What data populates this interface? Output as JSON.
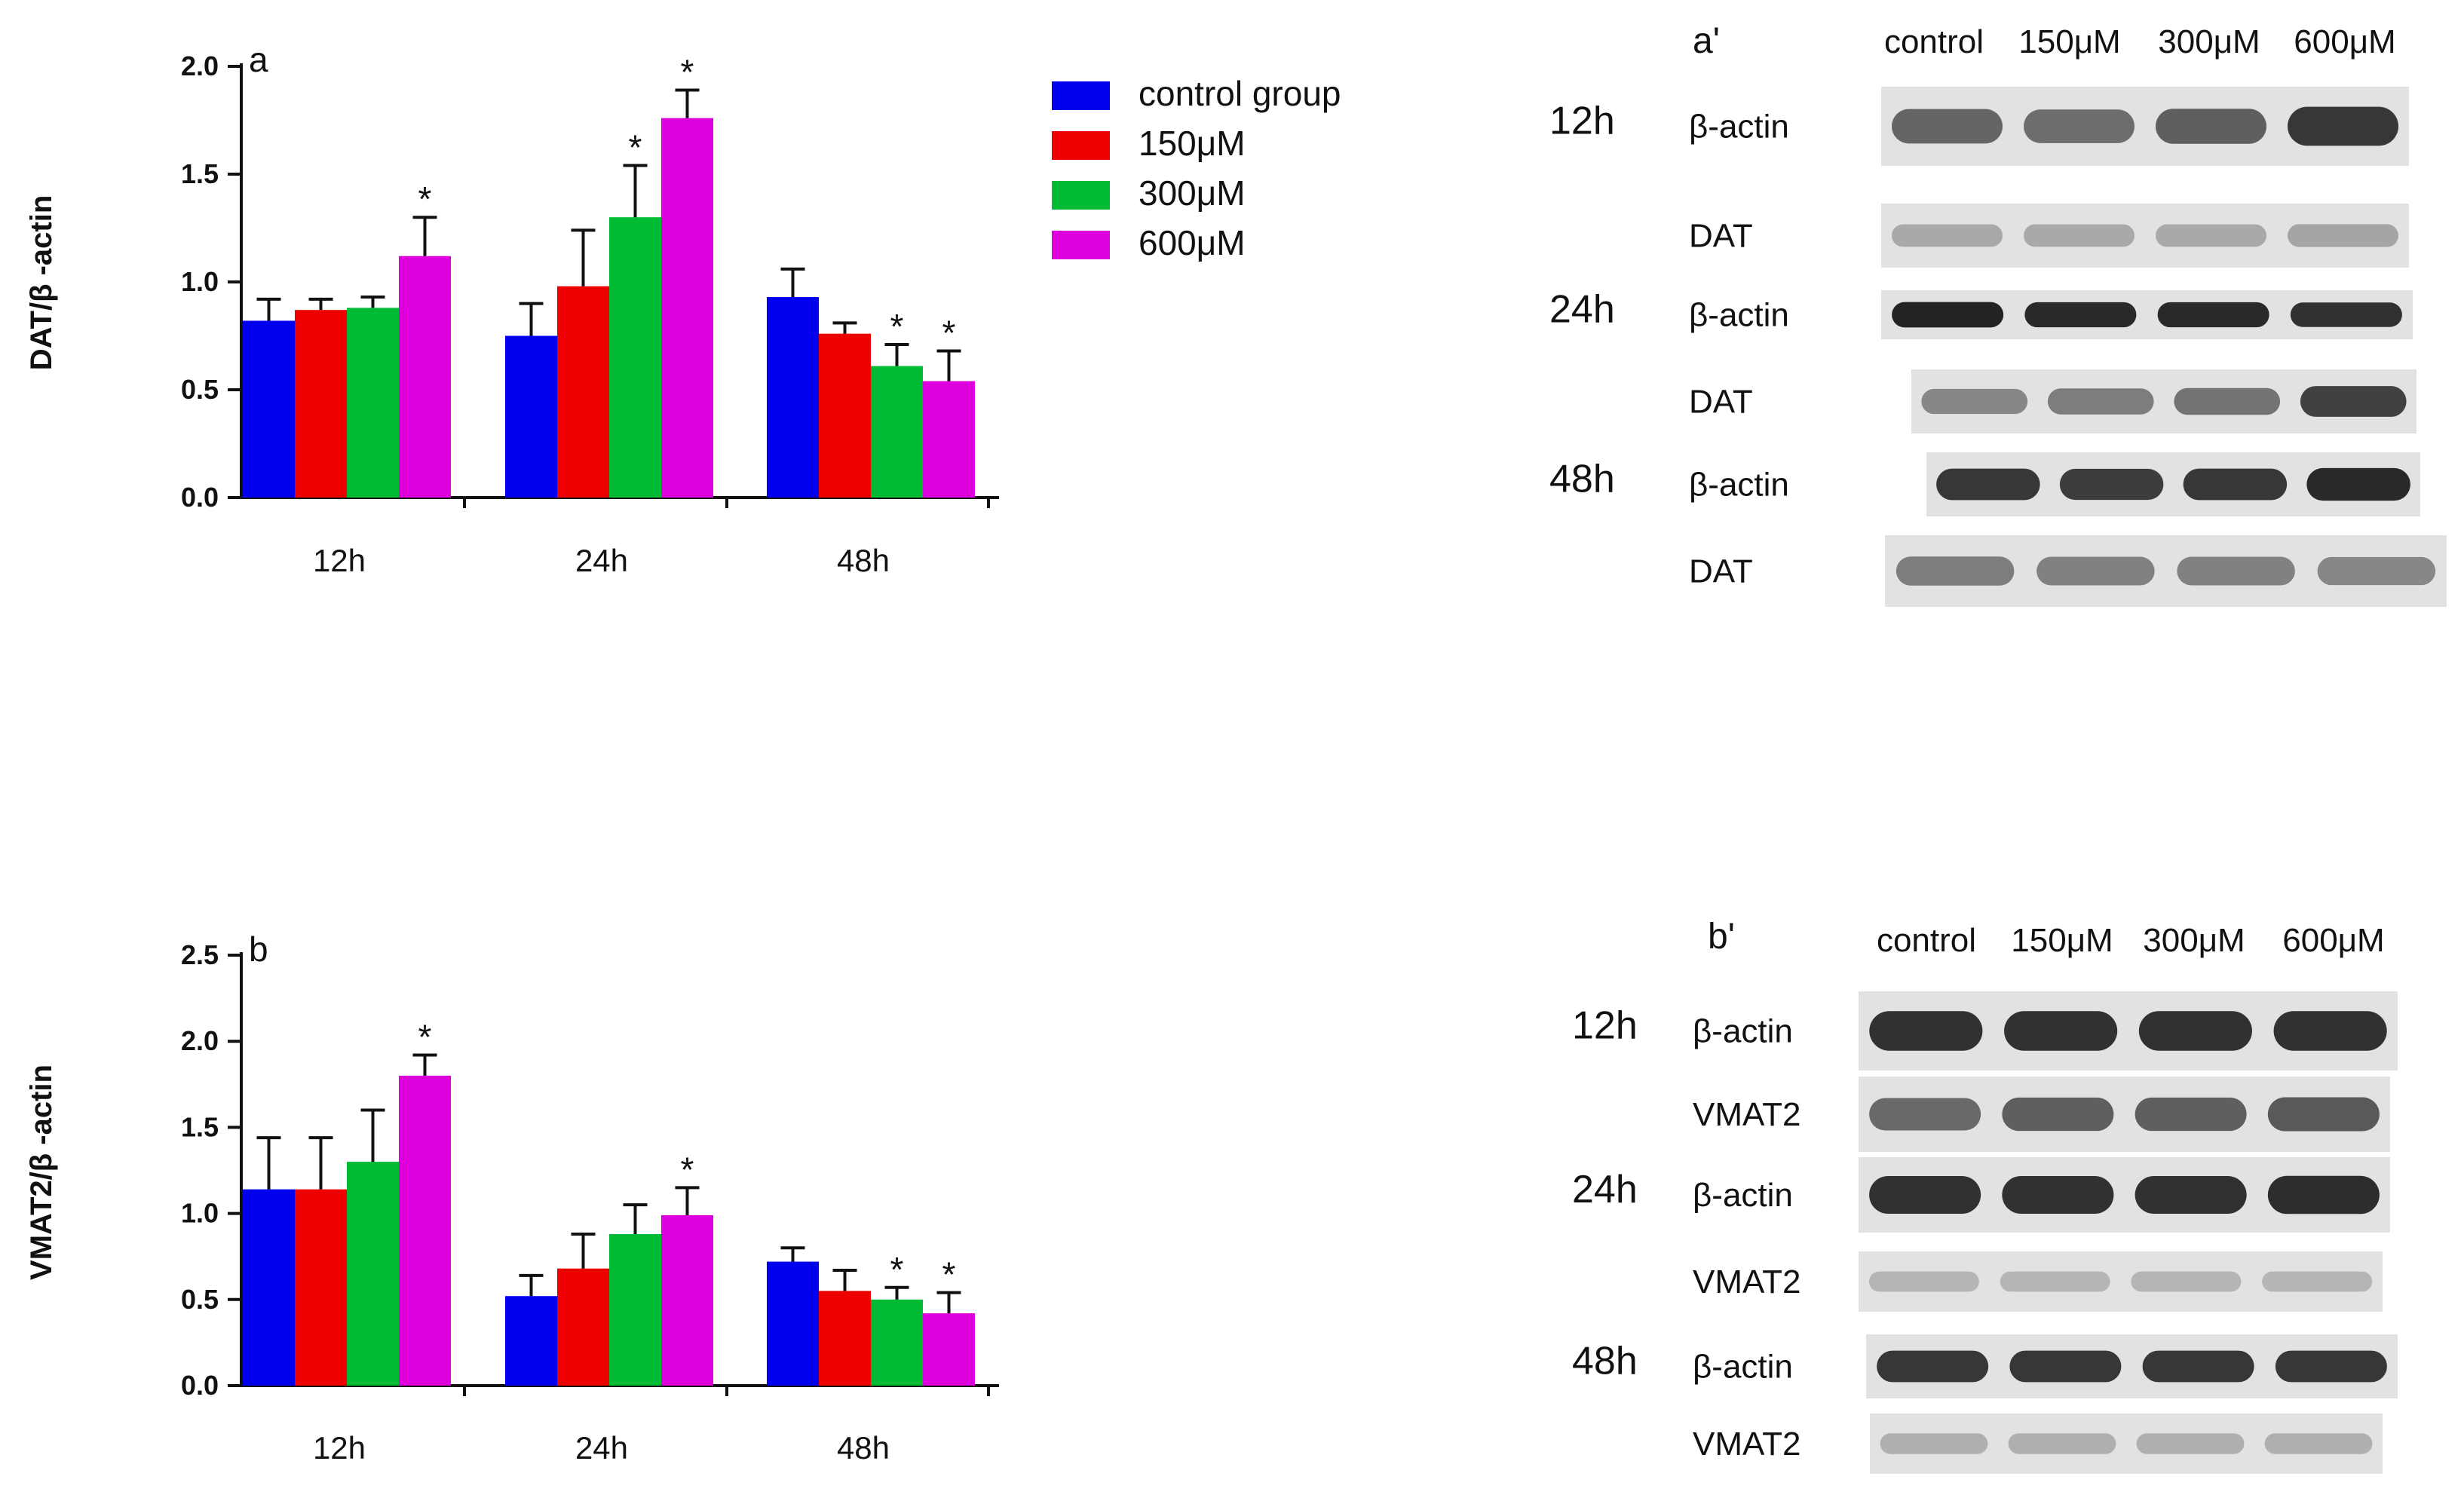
{
  "colors": {
    "control": "#0000ee",
    "c150": "#ee0000",
    "c300": "#00bb33",
    "c600": "#dd00dd",
    "axis": "#111111",
    "text": "#111111"
  },
  "legend": {
    "items": [
      {
        "label": "control group",
        "color": "#0000ee"
      },
      {
        "label": "150μM",
        "color": "#ee0000"
      },
      {
        "label": "300μM",
        "color": "#00bb33"
      },
      {
        "label": "600μM",
        "color": "#dd00dd"
      }
    ],
    "position": "top-right of chart a"
  },
  "chart_data": [
    {
      "type": "bar",
      "panel": "a",
      "title": "",
      "xlabel": "",
      "ylabel": "DAT/β -actin",
      "ylim": [
        0,
        2.0
      ],
      "yticks": [
        "0.0",
        "0.5",
        "1.0",
        "1.5",
        "2.0"
      ],
      "categories": [
        "12h",
        "24h",
        "48h"
      ],
      "grid": false,
      "series": [
        {
          "name": "control group",
          "values": [
            0.82,
            0.75,
            0.93
          ],
          "errors": [
            0.1,
            0.15,
            0.13
          ],
          "significant": [
            false,
            false,
            false
          ]
        },
        {
          "name": "150μM",
          "values": [
            0.87,
            0.98,
            0.76
          ],
          "errors": [
            0.05,
            0.26,
            0.05
          ],
          "significant": [
            false,
            false,
            false
          ]
        },
        {
          "name": "300μM",
          "values": [
            0.88,
            1.3,
            0.61
          ],
          "errors": [
            0.05,
            0.24,
            0.1
          ],
          "significant": [
            false,
            true,
            true
          ]
        },
        {
          "name": "600μM",
          "values": [
            1.12,
            1.76,
            0.54
          ],
          "errors": [
            0.18,
            0.13,
            0.14
          ],
          "significant": [
            true,
            true,
            true
          ]
        }
      ]
    },
    {
      "type": "bar",
      "panel": "b",
      "title": "",
      "xlabel": "",
      "ylabel": "VMAT2/β -actin",
      "ylim": [
        0,
        2.5
      ],
      "yticks": [
        "0.0",
        "0.5",
        "1.0",
        "1.5",
        "2.0",
        "2.5"
      ],
      "categories": [
        "12h",
        "24h",
        "48h"
      ],
      "grid": false,
      "series": [
        {
          "name": "control group",
          "values": [
            1.14,
            0.52,
            0.72
          ],
          "errors": [
            0.3,
            0.12,
            0.08
          ],
          "significant": [
            false,
            false,
            false
          ]
        },
        {
          "name": "150μM",
          "values": [
            1.14,
            0.68,
            0.55
          ],
          "errors": [
            0.3,
            0.2,
            0.12
          ],
          "significant": [
            false,
            false,
            false
          ]
        },
        {
          "name": "300μM",
          "values": [
            1.3,
            0.88,
            0.5
          ],
          "errors": [
            0.3,
            0.17,
            0.07
          ],
          "significant": [
            false,
            false,
            true
          ]
        },
        {
          "name": "600μM",
          "values": [
            1.8,
            0.99,
            0.42
          ],
          "errors": [
            0.12,
            0.16,
            0.12
          ],
          "significant": [
            true,
            true,
            true
          ]
        }
      ]
    }
  ],
  "blots": [
    {
      "panel": "a'",
      "lanes": [
        "control",
        "150μM",
        "300μM",
        "600μM"
      ],
      "rows": [
        {
          "time": "12h",
          "label": "β-actin",
          "intensity": [
            0.62,
            0.58,
            0.65,
            0.85
          ]
        },
        {
          "time": "",
          "label": "DAT",
          "intensity": [
            0.28,
            0.28,
            0.28,
            0.3
          ]
        },
        {
          "time": "24h",
          "label": "β-actin",
          "intensity": [
            0.95,
            0.92,
            0.92,
            0.88
          ]
        },
        {
          "time": "",
          "label": "DAT",
          "intensity": [
            0.45,
            0.5,
            0.55,
            0.8
          ]
        },
        {
          "time": "48h",
          "label": "β-actin",
          "intensity": [
            0.85,
            0.82,
            0.85,
            0.92
          ]
        },
        {
          "time": "",
          "label": "DAT",
          "intensity": [
            0.5,
            0.48,
            0.48,
            0.45
          ]
        }
      ]
    },
    {
      "panel": "b'",
      "lanes": [
        "control",
        "150μM",
        "300μM",
        "600μM"
      ],
      "rows": [
        {
          "time": "12h",
          "label": "β-actin",
          "intensity": [
            0.88,
            0.88,
            0.88,
            0.88
          ]
        },
        {
          "time": "",
          "label": "VMAT2",
          "intensity": [
            0.6,
            0.65,
            0.65,
            0.68
          ]
        },
        {
          "time": "24h",
          "label": "β-actin",
          "intensity": [
            0.88,
            0.88,
            0.88,
            0.9
          ]
        },
        {
          "time": "",
          "label": "VMAT2",
          "intensity": [
            0.22,
            0.22,
            0.22,
            0.22
          ]
        },
        {
          "time": "48h",
          "label": "β-actin",
          "intensity": [
            0.85,
            0.85,
            0.85,
            0.85
          ]
        },
        {
          "time": "",
          "label": "VMAT2",
          "intensity": [
            0.25,
            0.25,
            0.25,
            0.25
          ]
        }
      ]
    }
  ]
}
